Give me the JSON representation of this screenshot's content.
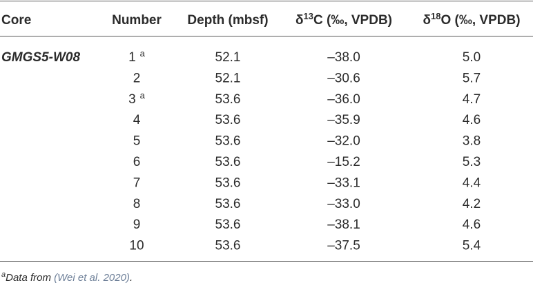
{
  "table": {
    "header": [
      {
        "text": "Core"
      },
      {
        "text": "Number"
      },
      {
        "text": "Depth (mbsf)"
      },
      {
        "pre": "δ",
        "sup": "13",
        "post": "C (‰, VPDB)"
      },
      {
        "pre": "δ",
        "sup": "18",
        "post": "O (‰, VPDB)"
      }
    ],
    "core": "GMGS5-W08",
    "rows": [
      {
        "number": "1",
        "note": "a",
        "depth": "52.1",
        "d13c": "–38.0",
        "d18o": "5.0"
      },
      {
        "number": "2",
        "depth": "52.1",
        "d13c": "–30.6",
        "d18o": "5.7"
      },
      {
        "number": "3",
        "note": "a",
        "depth": "53.6",
        "d13c": "–36.0",
        "d18o": "4.7"
      },
      {
        "number": "4",
        "depth": "53.6",
        "d13c": "–35.9",
        "d18o": "4.6"
      },
      {
        "number": "5",
        "depth": "53.6",
        "d13c": "–32.0",
        "d18o": "3.8"
      },
      {
        "number": "6",
        "depth": "53.6",
        "d13c": "–15.2",
        "d18o": "5.3"
      },
      {
        "number": "7",
        "depth": "53.6",
        "d13c": "–33.1",
        "d18o": "4.4"
      },
      {
        "number": "8",
        "depth": "53.6",
        "d13c": "–33.0",
        "d18o": "4.2"
      },
      {
        "number": "9",
        "depth": "53.6",
        "d13c": "–38.1",
        "d18o": "4.6"
      },
      {
        "number": "10",
        "depth": "53.6",
        "d13c": "–37.5",
        "d18o": "5.4"
      }
    ]
  },
  "footnote": {
    "marker": "a",
    "text": "Data from ",
    "citation": "(Wei et al. 2020)",
    "end": "."
  }
}
